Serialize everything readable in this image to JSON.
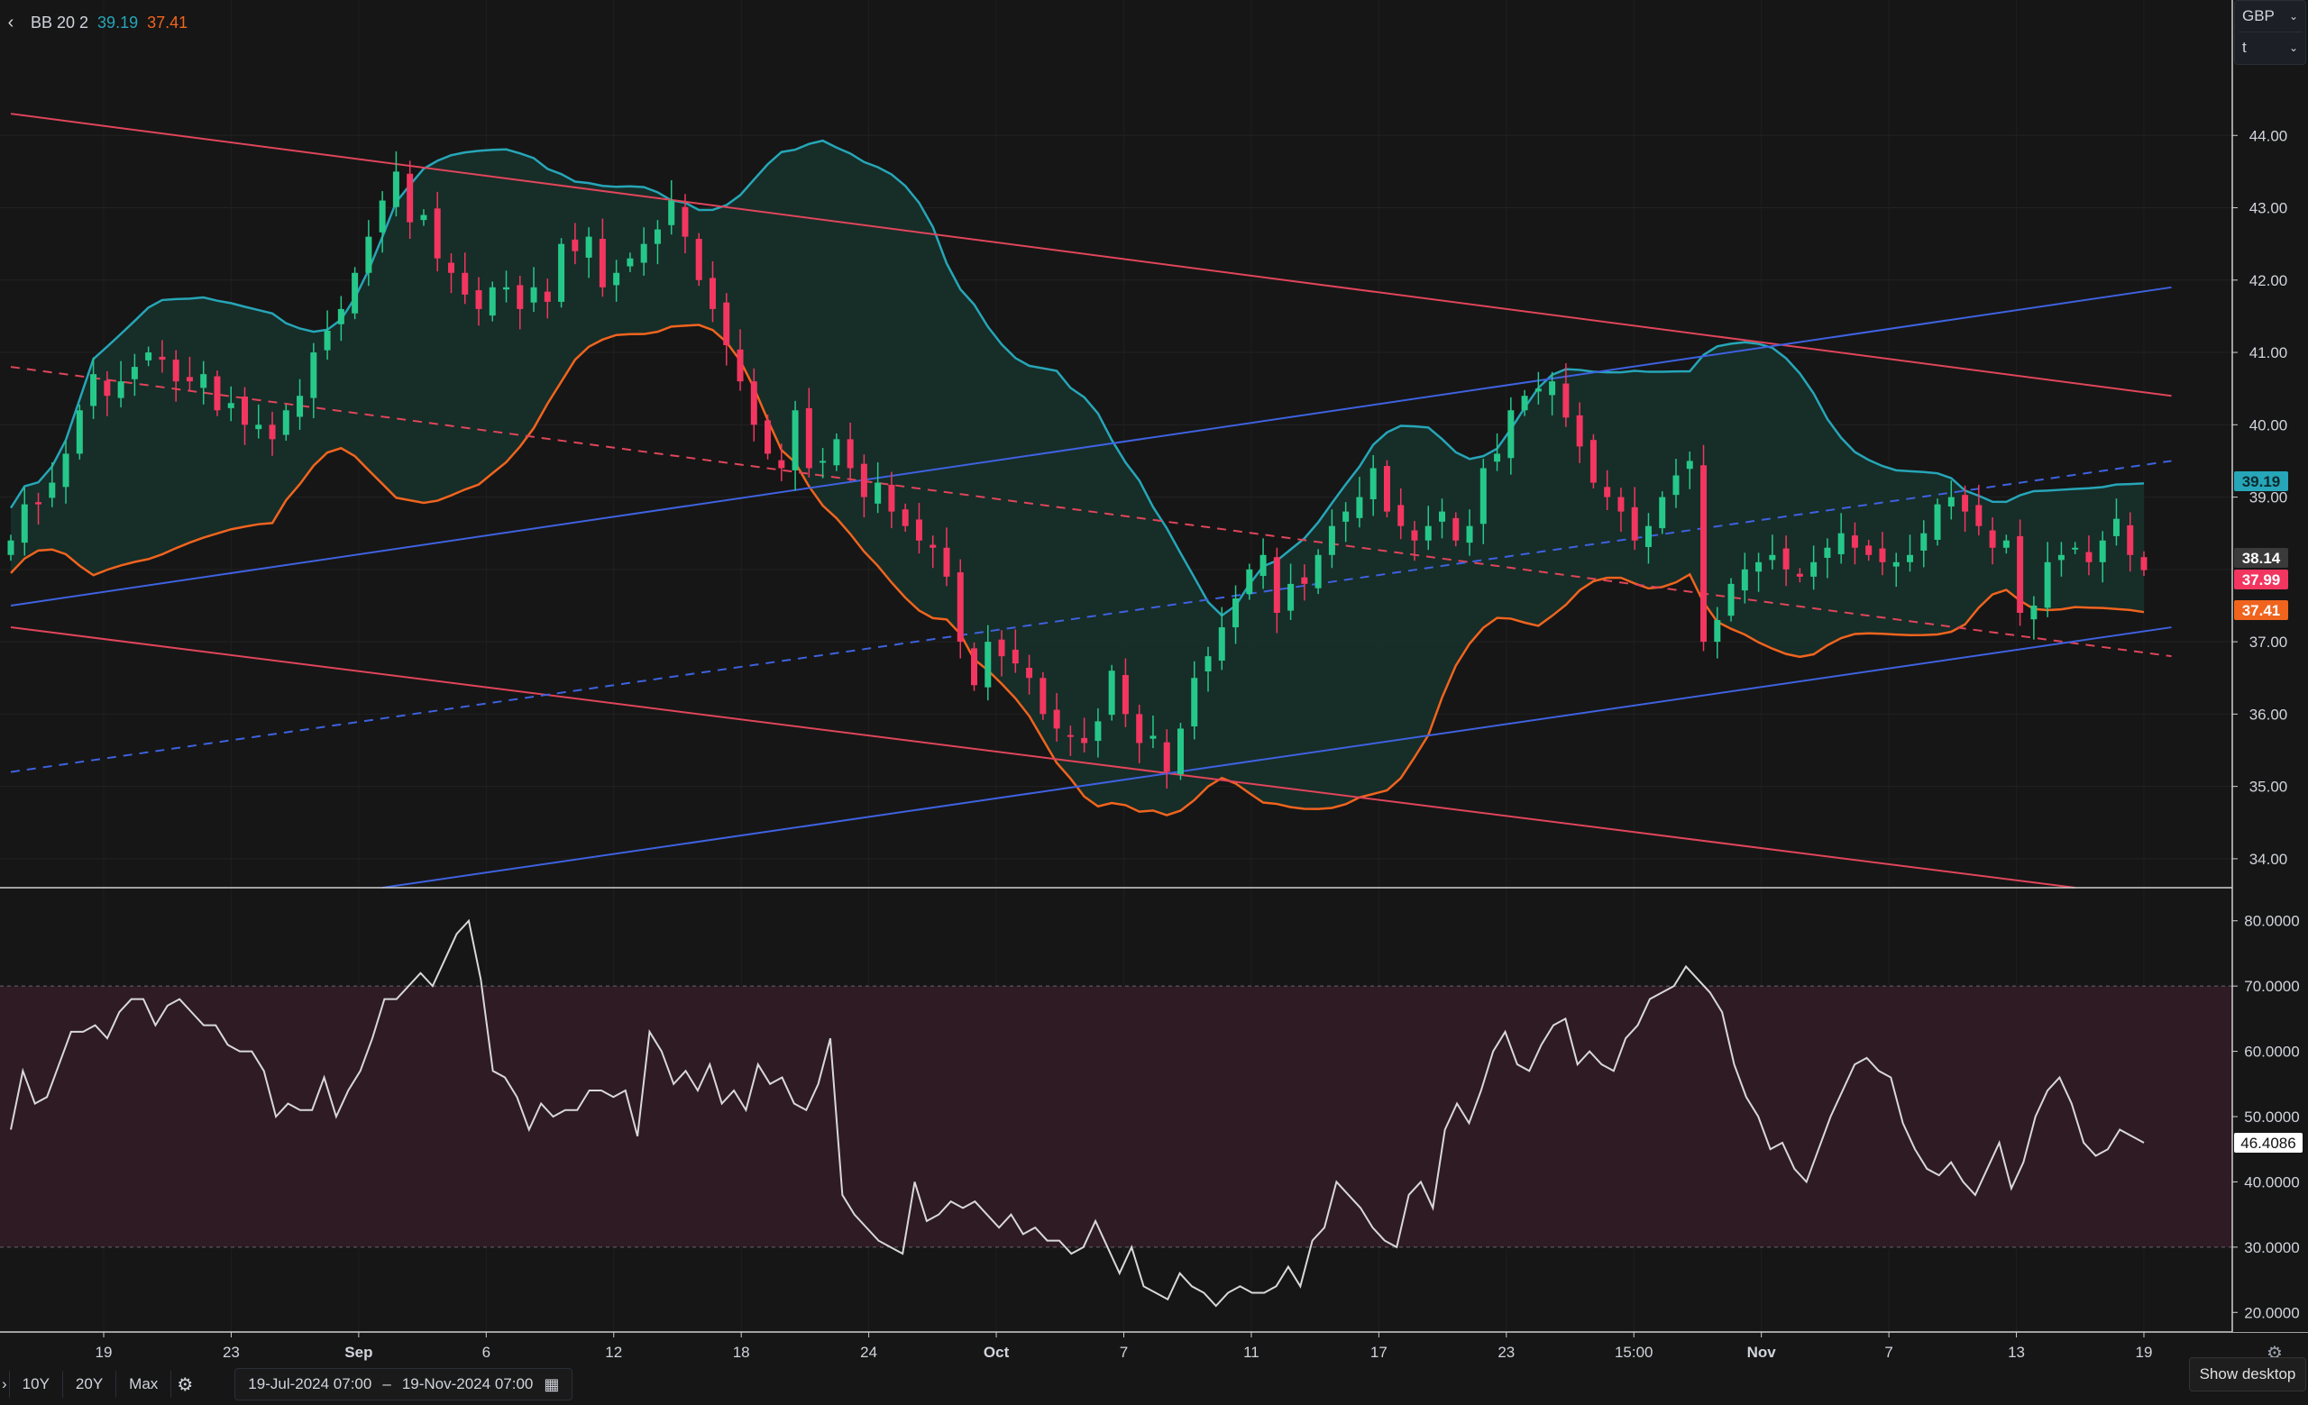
{
  "legend": {
    "indicator": "BB 20 2",
    "upper_value": "39.19",
    "lower_value": "37.41",
    "upper_color": "#26a6b8",
    "lower_color": "#f0641e"
  },
  "currency_selector": {
    "currency": "GBP",
    "unit": "t"
  },
  "toolbar": {
    "ranges": [
      "10Y",
      "20Y",
      "Max"
    ],
    "date_from": "19-Jul-2024 07:00",
    "date_separator": "–",
    "date_to": "19-Nov-2024 07:00",
    "show_desktop": "Show desktop"
  },
  "colors": {
    "background": "#161616",
    "up_candle": "#26c88a",
    "down_candle": "#f23660",
    "bb_fill": "#17302a",
    "channel_red": "#e0455a",
    "channel_blue": "#3e62e0",
    "rsi_line": "#d8d8d8",
    "rsi_band": "#2e1b24"
  },
  "chart_data": [
    {
      "type": "candlestick",
      "x_tick_labels": [
        "19",
        "23",
        "Sep",
        "6",
        "12",
        "18",
        "24",
        "Oct",
        "7",
        "11",
        "17",
        "23",
        "15:00",
        "Nov",
        "7",
        "13",
        "19"
      ],
      "y_tick_labels": [
        "44.00",
        "43.00",
        "42.00",
        "41.00",
        "40.00",
        "39.00",
        "37.00",
        "36.00",
        "35.00",
        "34.00"
      ],
      "ylim": [
        33.6,
        45.0
      ],
      "price_labels": [
        {
          "value": "39.19",
          "role": "bb-upper",
          "color": "#26a6b8"
        },
        {
          "value": "38.14",
          "role": "last-close",
          "color": "#3a3a3a"
        },
        {
          "value": "37.99",
          "role": "last-price",
          "color": "#f23660"
        },
        {
          "value": "37.41",
          "role": "bb-lower",
          "color": "#f0641e"
        }
      ],
      "close": [
        38.4,
        38.9,
        38.9,
        39.2,
        39.6,
        40.2,
        40.7,
        40.4,
        40.6,
        40.8,
        41.0,
        40.9,
        40.6,
        40.6,
        40.7,
        40.2,
        40.3,
        40.0,
        40.0,
        39.8,
        40.2,
        40.4,
        41.0,
        41.3,
        41.6,
        42.1,
        42.6,
        43.1,
        43.5,
        42.8,
        42.9,
        42.3,
        42.1,
        41.8,
        41.6,
        41.9,
        41.9,
        41.6,
        41.9,
        41.7,
        42.5,
        42.4,
        42.6,
        41.9,
        42.1,
        42.3,
        42.5,
        42.7,
        43.1,
        42.6,
        42.0,
        41.6,
        41.1,
        40.6,
        40.0,
        39.6,
        39.4,
        40.2,
        39.4,
        39.5,
        39.8,
        39.4,
        39.0,
        39.2,
        38.8,
        38.6,
        38.4,
        38.3,
        37.9,
        37.0,
        36.4,
        37.0,
        36.8,
        36.7,
        36.5,
        36.0,
        35.8,
        35.7,
        35.6,
        35.9,
        36.6,
        36.0,
        35.6,
        35.7,
        35.2,
        35.8,
        36.5,
        36.8,
        37.2,
        37.6,
        38.0,
        38.2,
        37.4,
        37.8,
        37.8,
        38.2,
        38.6,
        38.8,
        39.0,
        39.4,
        38.8,
        38.6,
        38.4,
        38.6,
        38.8,
        38.4,
        38.6,
        39.4,
        39.6,
        40.2,
        40.4,
        40.5,
        40.6,
        40.1,
        39.7,
        39.2,
        39.0,
        38.8,
        38.4,
        38.6,
        39.0,
        39.3,
        39.5,
        37.0,
        37.3,
        37.8,
        38.0,
        38.1,
        38.2,
        38.0,
        37.9,
        38.1,
        38.3,
        38.5,
        38.3,
        38.2,
        38.1,
        38.1,
        38.2,
        38.5,
        38.9,
        39.0,
        38.8,
        38.6,
        38.3,
        38.4,
        37.4,
        37.5,
        38.1,
        38.2,
        38.3,
        38.1,
        38.4,
        38.7,
        38.2,
        37.99
      ],
      "bb_upper_last": 39.19,
      "bb_lower_last": 37.41,
      "channel_lines": [
        {
          "color": "red",
          "style": "solid",
          "from": [
            0,
            44.3
          ],
          "to": [
            157,
            40.4
          ]
        },
        {
          "color": "red",
          "style": "solid",
          "from": [
            0,
            37.2
          ],
          "to": [
            150,
            33.6
          ]
        },
        {
          "color": "red",
          "style": "dashed",
          "from": [
            0,
            40.8
          ],
          "to": [
            157,
            36.8
          ]
        },
        {
          "color": "blue",
          "style": "solid",
          "from": [
            0,
            37.5
          ],
          "to": [
            157,
            41.9
          ]
        },
        {
          "color": "blue",
          "style": "solid",
          "from": [
            27,
            33.6
          ],
          "to": [
            157,
            37.2
          ]
        },
        {
          "color": "blue",
          "style": "dashed",
          "from": [
            0,
            35.2
          ],
          "to": [
            157,
            39.5
          ]
        }
      ]
    },
    {
      "type": "line",
      "name": "RSI",
      "y_tick_labels": [
        "80.0000",
        "70.0000",
        "60.0000",
        "50.0000",
        "40.0000",
        "30.0000",
        "20.0000"
      ],
      "ylim": [
        17,
        83
      ],
      "band": [
        30,
        70
      ],
      "last_value_label": "46.4086",
      "values": [
        48,
        57,
        52,
        53,
        58,
        63,
        63,
        64,
        62,
        66,
        68,
        68,
        64,
        67,
        68,
        66,
        64,
        64,
        61,
        60,
        60,
        57,
        50,
        52,
        51,
        51,
        56,
        50,
        54,
        57,
        62,
        68,
        68,
        70,
        72,
        70,
        74,
        78,
        80,
        71,
        57,
        56,
        53,
        48,
        52,
        50,
        51,
        51,
        54,
        54,
        53,
        54,
        47,
        63,
        60,
        55,
        57,
        54,
        58,
        52,
        54,
        51,
        58,
        55,
        56,
        52,
        51,
        55,
        62,
        38,
        35,
        33,
        31,
        30,
        29,
        40,
        34,
        35,
        37,
        36,
        37,
        35,
        33,
        35,
        32,
        33,
        31,
        31,
        29,
        30,
        34,
        30,
        26,
        30,
        24,
        23,
        22,
        26,
        24,
        23,
        21,
        23,
        24,
        23,
        23,
        24,
        27,
        24,
        31,
        33,
        40,
        38,
        36,
        33,
        31,
        30,
        38,
        40,
        36,
        48,
        52,
        49,
        54,
        60,
        63,
        58,
        57,
        61,
        64,
        65,
        58,
        60,
        58,
        57,
        62,
        64,
        68,
        69,
        70,
        73,
        71,
        69,
        66,
        58,
        53,
        50,
        45,
        46,
        42,
        40,
        45,
        50,
        54,
        58,
        59,
        57,
        56,
        49,
        45,
        42,
        41,
        43,
        40,
        38,
        42,
        46,
        39,
        43,
        50,
        54,
        56,
        52,
        46,
        44,
        45,
        48,
        47,
        46
      ]
    }
  ]
}
